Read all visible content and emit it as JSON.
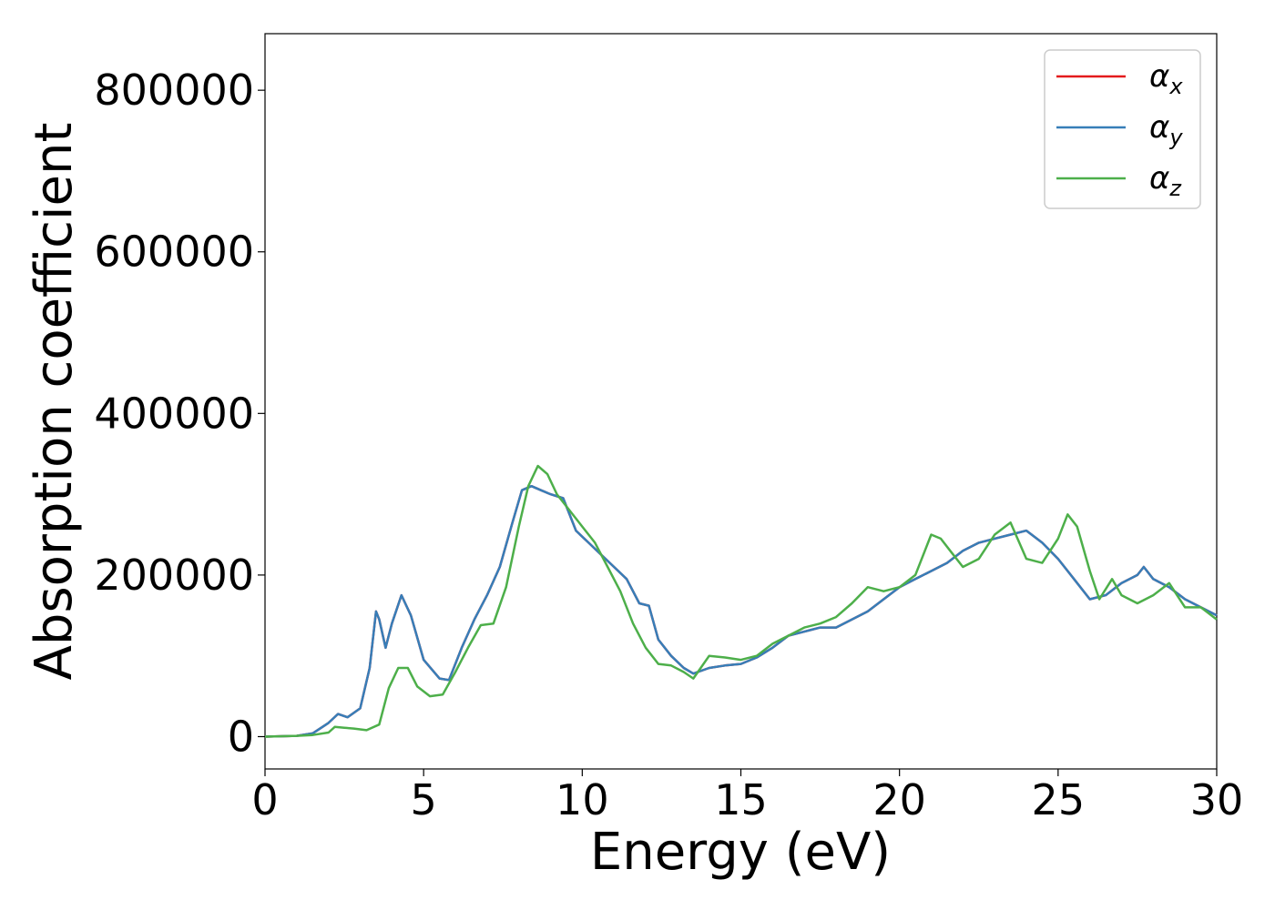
{
  "chart_data": {
    "type": "line",
    "title": "",
    "xlabel": "Energy (eV)",
    "ylabel": "Absorption coefficient",
    "xlim": [
      0,
      30
    ],
    "ylim": [
      -40000,
      870000
    ],
    "xticks": [
      0,
      5,
      10,
      15,
      20,
      25,
      30
    ],
    "xtick_labels": [
      "0",
      "5",
      "10",
      "15",
      "20",
      "25",
      "30"
    ],
    "yticks": [
      0,
      200000,
      400000,
      600000,
      800000
    ],
    "ytick_labels": [
      "0",
      "200000",
      "400000",
      "600000",
      "800000"
    ],
    "grid": false,
    "legend_position": "top-right",
    "series": [
      {
        "name": "α",
        "subscript": "x",
        "color": "#e41a1c",
        "x": [
          0,
          1.0,
          1.5,
          2.0,
          2.3,
          2.6,
          3.0,
          3.3,
          3.5,
          3.6,
          3.8,
          4.0,
          4.3,
          4.6,
          5.0,
          5.5,
          5.8,
          6.2,
          6.6,
          7.0,
          7.4,
          7.8,
          8.1,
          8.4,
          8.7,
          9.0,
          9.4,
          9.8,
          10.2,
          10.6,
          11.0,
          11.4,
          11.8,
          12.1,
          12.4,
          12.8,
          13.2,
          13.5,
          14.0,
          14.5,
          15.0,
          15.5,
          16.0,
          16.5,
          17.0,
          17.5,
          18.0,
          18.5,
          19.0,
          19.5,
          20.0,
          20.5,
          21.0,
          21.5,
          22.0,
          22.5,
          23.0,
          23.5,
          24.0,
          24.5,
          25.0,
          25.5,
          26.0,
          26.5,
          27.0,
          27.5,
          27.7,
          28.0,
          28.5,
          29.0,
          29.5,
          30.0
        ],
        "y": [
          0,
          1000,
          4000,
          17000,
          28000,
          24000,
          35000,
          85000,
          155000,
          145000,
          110000,
          140000,
          175000,
          150000,
          95000,
          72000,
          70000,
          110000,
          145000,
          175000,
          210000,
          265000,
          305000,
          310000,
          305000,
          300000,
          295000,
          255000,
          240000,
          225000,
          210000,
          195000,
          165000,
          162000,
          120000,
          100000,
          85000,
          78000,
          85000,
          88000,
          90000,
          98000,
          110000,
          125000,
          130000,
          135000,
          135000,
          145000,
          155000,
          170000,
          185000,
          195000,
          205000,
          215000,
          230000,
          240000,
          245000,
          250000,
          255000,
          240000,
          220000,
          195000,
          170000,
          175000,
          190000,
          200000,
          210000,
          195000,
          185000,
          170000,
          160000,
          150000
        ]
      },
      {
        "name": "α",
        "subscript": "y",
        "color": "#377eb8",
        "x": [
          0,
          1.0,
          1.5,
          2.0,
          2.3,
          2.6,
          3.0,
          3.3,
          3.5,
          3.6,
          3.8,
          4.0,
          4.3,
          4.6,
          5.0,
          5.5,
          5.8,
          6.2,
          6.6,
          7.0,
          7.4,
          7.8,
          8.1,
          8.4,
          8.7,
          9.0,
          9.4,
          9.8,
          10.2,
          10.6,
          11.0,
          11.4,
          11.8,
          12.1,
          12.4,
          12.8,
          13.2,
          13.5,
          14.0,
          14.5,
          15.0,
          15.5,
          16.0,
          16.5,
          17.0,
          17.5,
          18.0,
          18.5,
          19.0,
          19.5,
          20.0,
          20.5,
          21.0,
          21.5,
          22.0,
          22.5,
          23.0,
          23.5,
          24.0,
          24.5,
          25.0,
          25.5,
          26.0,
          26.5,
          27.0,
          27.5,
          27.7,
          28.0,
          28.5,
          29.0,
          29.5,
          30.0
        ],
        "y": [
          0,
          1000,
          4000,
          17000,
          28000,
          24000,
          35000,
          85000,
          155000,
          145000,
          110000,
          140000,
          175000,
          150000,
          95000,
          72000,
          70000,
          110000,
          145000,
          175000,
          210000,
          265000,
          305000,
          310000,
          305000,
          300000,
          295000,
          255000,
          240000,
          225000,
          210000,
          195000,
          165000,
          162000,
          120000,
          100000,
          85000,
          78000,
          85000,
          88000,
          90000,
          98000,
          110000,
          125000,
          130000,
          135000,
          135000,
          145000,
          155000,
          170000,
          185000,
          195000,
          205000,
          215000,
          230000,
          240000,
          245000,
          250000,
          255000,
          240000,
          220000,
          195000,
          170000,
          175000,
          190000,
          200000,
          210000,
          195000,
          185000,
          170000,
          160000,
          150000
        ]
      },
      {
        "name": "α",
        "subscript": "z",
        "color": "#4daf4a",
        "x": [
          0,
          1.0,
          1.5,
          2.0,
          2.2,
          2.5,
          2.8,
          3.2,
          3.6,
          3.9,
          4.2,
          4.5,
          4.8,
          5.2,
          5.6,
          6.0,
          6.4,
          6.8,
          7.2,
          7.6,
          8.0,
          8.3,
          8.6,
          8.9,
          9.2,
          9.6,
          10.0,
          10.4,
          10.8,
          11.2,
          11.6,
          12.0,
          12.4,
          12.8,
          13.2,
          13.5,
          14.0,
          14.5,
          15.0,
          15.5,
          16.0,
          16.5,
          17.0,
          17.5,
          18.0,
          18.5,
          19.0,
          19.5,
          20.0,
          20.5,
          21.0,
          21.3,
          21.6,
          22.0,
          22.5,
          23.0,
          23.5,
          24.0,
          24.5,
          25.0,
          25.3,
          25.6,
          26.0,
          26.3,
          26.7,
          27.0,
          27.5,
          28.0,
          28.5,
          29.0,
          29.5,
          30.0
        ],
        "y": [
          0,
          1000,
          2000,
          5000,
          12000,
          11000,
          10000,
          8000,
          15000,
          60000,
          85000,
          85000,
          62000,
          50000,
          52000,
          80000,
          110000,
          138000,
          140000,
          185000,
          260000,
          310000,
          335000,
          325000,
          300000,
          280000,
          260000,
          240000,
          210000,
          180000,
          140000,
          110000,
          90000,
          88000,
          80000,
          72000,
          100000,
          98000,
          95000,
          100000,
          115000,
          125000,
          135000,
          140000,
          148000,
          165000,
          185000,
          180000,
          185000,
          200000,
          250000,
          245000,
          230000,
          210000,
          220000,
          250000,
          265000,
          220000,
          215000,
          245000,
          275000,
          260000,
          205000,
          170000,
          195000,
          175000,
          165000,
          175000,
          190000,
          160000,
          160000,
          145000
        ]
      }
    ]
  }
}
